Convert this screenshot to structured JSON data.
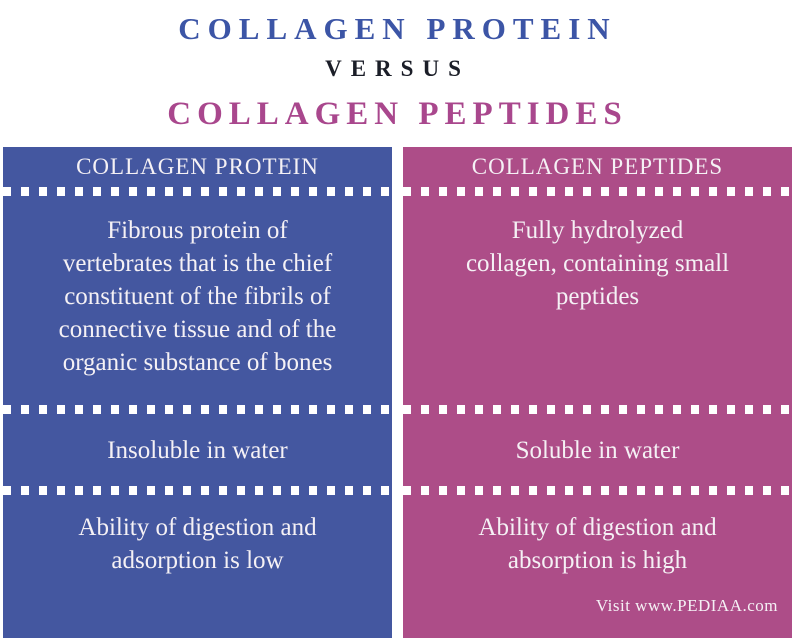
{
  "title": {
    "line1": "COLLAGEN PROTEIN",
    "versus": "VERSUS",
    "line2": "COLLAGEN PEPTIDES"
  },
  "colors": {
    "title_blue": "#3c55a6",
    "title_dark": "#1b1e28",
    "title_magenta": "#a9478d",
    "column_blue": "#4457a0",
    "column_magenta": "#ad4d88",
    "text_white": "#f5f1f5"
  },
  "columns": [
    {
      "header": "COLLAGEN PROTEIN",
      "rows": [
        [
          "Fibrous protein of",
          "vertebrates that is the chief",
          "constituent of the fibrils of",
          "connective tissue and of the",
          "organic substance of bones"
        ],
        "Insoluble in water",
        [
          "Ability of digestion and",
          "adsorption is low"
        ]
      ]
    },
    {
      "header": "COLLAGEN PEPTIDES",
      "rows": [
        [
          "Fully hydrolyzed",
          "collagen, containing small",
          "peptides"
        ],
        "Soluble in water",
        [
          "Ability of digestion and",
          "absorption is high"
        ]
      ],
      "footer": "Visit www.PEDIAA.com"
    }
  ]
}
